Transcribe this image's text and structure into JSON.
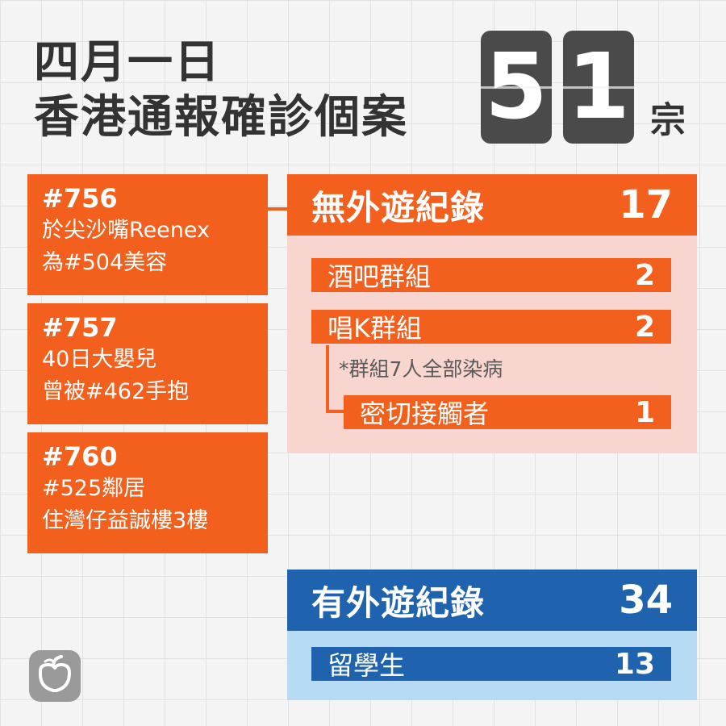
{
  "title": {
    "line1": "四月一日",
    "line2": "香港通報確診個案",
    "digits": [
      "5",
      "1"
    ],
    "unit": "宗"
  },
  "cases": [
    {
      "id": "#756",
      "lines": [
        "於尖沙嘴Reenex",
        "為#504美容"
      ]
    },
    {
      "id": "#757",
      "lines": [
        "40日大嬰兒",
        "曾被#462手抱"
      ]
    },
    {
      "id": "#760",
      "lines": [
        "#525鄰居",
        "住灣仔益誠樓3樓"
      ]
    }
  ],
  "local": {
    "label": "無外遊紀錄",
    "count": "17",
    "groups": [
      {
        "label": "酒吧群組",
        "count": "2"
      },
      {
        "label": "唱K群組",
        "count": "2"
      }
    ],
    "note": "*群組7人全部染病",
    "close_contact": {
      "label": "密切接觸者",
      "count": "1"
    }
  },
  "imported": {
    "label": "有外遊紀錄",
    "count": "34",
    "groups": [
      {
        "label": "留學生",
        "count": "13"
      }
    ]
  },
  "colors": {
    "orange": "#f35f1c",
    "blue": "#1f63ae",
    "pink_panel": "#f9d5cf",
    "blue_panel": "#b8dbf5",
    "dark_tile": "#4a4a4a"
  },
  "logo": {
    "icon": "apple-logo-icon"
  }
}
